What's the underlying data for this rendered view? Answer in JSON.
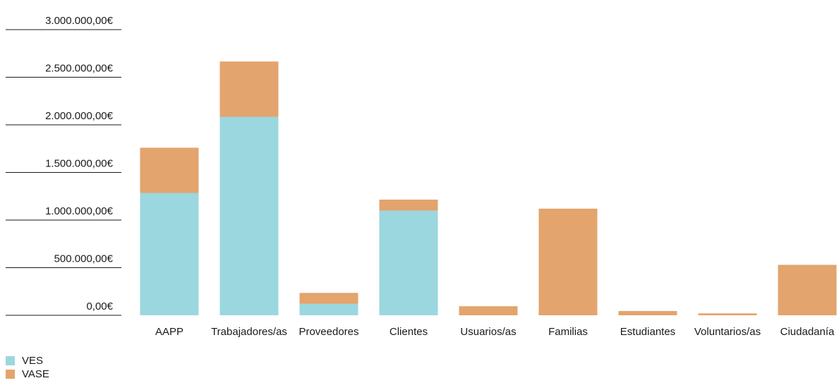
{
  "chart_data": {
    "type": "bar",
    "stacked": true,
    "categories": [
      "AAPP",
      "Trabajadores/as",
      "Proveedores",
      "Clientes",
      "Usuarios/as",
      "Familias",
      "Estudiantes",
      "Voluntarios/as",
      "Ciudadanía"
    ],
    "series": [
      {
        "name": "VES",
        "color": "#9bd7df",
        "values": [
          1285000,
          2085000,
          120000,
          1100000,
          0,
          0,
          0,
          0,
          0
        ]
      },
      {
        "name": "VASE",
        "color": "#e3a46d",
        "values": [
          475000,
          580000,
          115000,
          115000,
          95000,
          1120000,
          45000,
          20000,
          530000
        ]
      }
    ],
    "ylim": [
      0,
      3000000
    ],
    "yticks": [
      "0,00€",
      "500.000,00€",
      "1.000.000,00€",
      "1.500.000,00€",
      "2.000.000,00€",
      "2.500.000,00€",
      "3.000.000,00€"
    ],
    "ytick_values": [
      0,
      500000,
      1000000,
      1500000,
      2000000,
      2500000,
      3000000
    ],
    "legend_position": "bottom-left",
    "grid": false
  }
}
